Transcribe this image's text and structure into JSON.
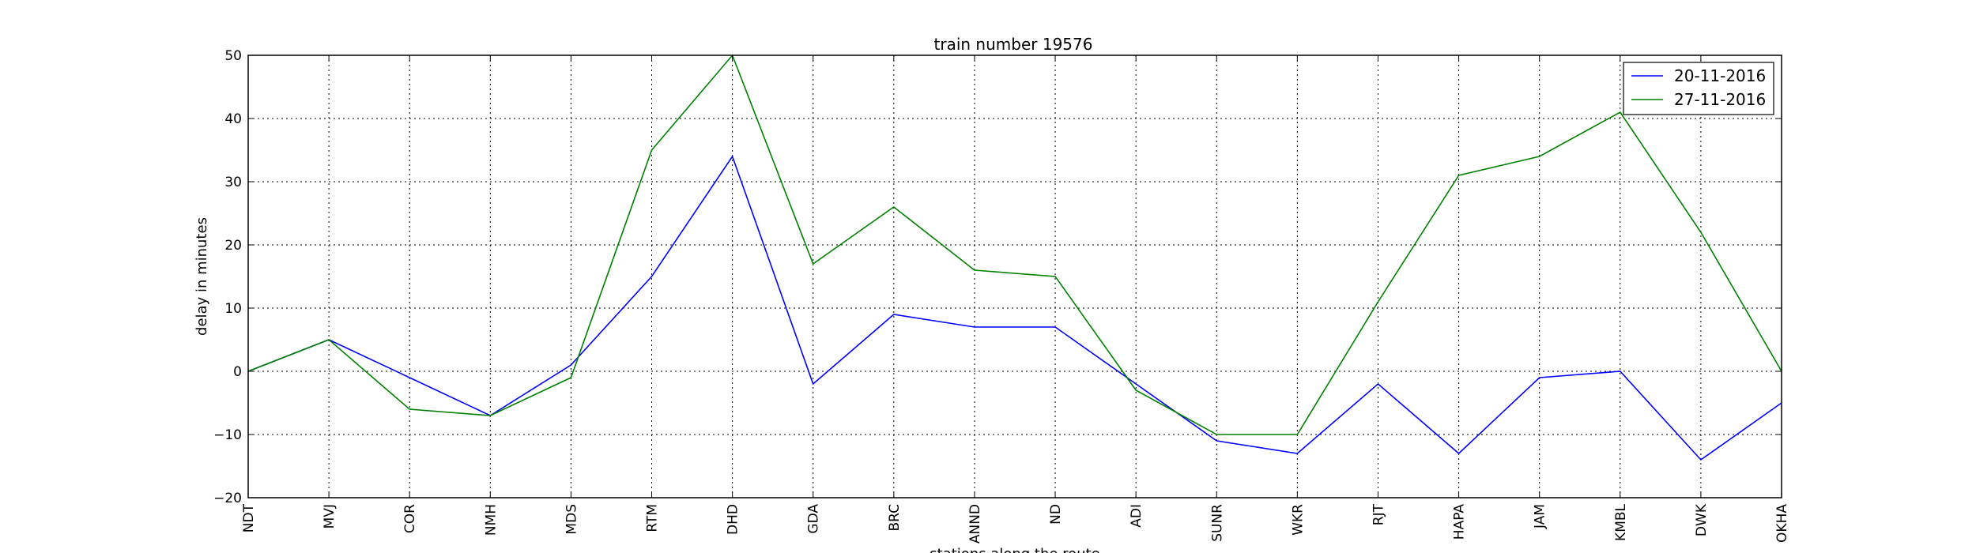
{
  "chart_data": {
    "type": "line",
    "title": "train number 19576",
    "xlabel": "stations along the route",
    "ylabel": "delay in minutes",
    "ylim": [
      -20,
      50
    ],
    "yticks": [
      -20,
      -10,
      0,
      10,
      20,
      30,
      40,
      50
    ],
    "ytick_labels": [
      "−20",
      "−10",
      "0",
      "10",
      "20",
      "30",
      "40",
      "50"
    ],
    "grid": true,
    "legend_position": "top-right",
    "categories": [
      "NDT",
      "MVJ",
      "COR",
      "NMH",
      "MDS",
      "RTM",
      "DHD",
      "GDA",
      "BRC",
      "ANND",
      "ND",
      "ADI",
      "SUNR",
      "WKR",
      "RJT",
      "HAPA",
      "JAM",
      "KMBL",
      "DWK",
      "OKHA"
    ],
    "series": [
      {
        "name": "20-11-2016",
        "color": "#0000ff",
        "values": [
          0,
          5,
          -1,
          -7,
          1,
          15,
          34,
          -2,
          9,
          7,
          7,
          -2,
          -11,
          -13,
          -2,
          -13,
          -1,
          0,
          -14,
          -5
        ]
      },
      {
        "name": "27-11-2016",
        "color": "#008000",
        "values": [
          0,
          5,
          -6,
          -7,
          -1,
          35,
          50,
          17,
          26,
          16,
          15,
          -3,
          -10,
          -10,
          11,
          31,
          34,
          41,
          22,
          0
        ]
      }
    ]
  }
}
